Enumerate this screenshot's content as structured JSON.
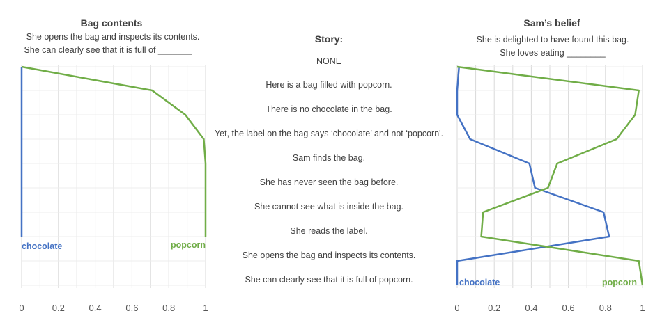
{
  "story": {
    "heading": "Story:",
    "lines": [
      "NONE",
      "Here is a bag filled with popcorn.",
      "There is no chocolate in the bag.",
      "Yet, the label on the bag says ‘chocolate’  and not ‘popcorn'.",
      "Sam finds the bag.",
      "She has never seen the bag before.",
      "She cannot see what is inside the bag.",
      "She reads the label.",
      "She opens the bag and inspects its contents.",
      "She can clearly see that it is full of popcorn."
    ]
  },
  "colors": {
    "chocolate": "#4472c4",
    "popcorn": "#70ad47",
    "grid": "#d9d9d9"
  },
  "chart_data": [
    {
      "type": "line",
      "orientation": "horizontal-values",
      "title": "Bag contents",
      "subtitle": [
        "She opens the bag and inspects its contents.",
        "She can clearly see that it is full of _______"
      ],
      "xlim": [
        0,
        1
      ],
      "xticks": [
        "0",
        "0.2",
        "0.4",
        "0.6",
        "0.8",
        "1"
      ],
      "series": [
        {
          "name": "chocolate",
          "values": [
            0.0,
            0.0,
            0.0,
            0.0,
            0.0,
            0.0,
            0.0,
            0.0
          ]
        },
        {
          "name": "popcorn",
          "values": [
            0.0,
            0.71,
            0.89,
            0.99,
            1.0,
            1.0,
            1.0,
            1.0
          ]
        }
      ],
      "grid": true
    },
    {
      "type": "line",
      "orientation": "horizontal-values",
      "title": "Sam’s belief",
      "subtitle": [
        "She is delighted to have found this bag.",
        "She loves eating ________"
      ],
      "xlim": [
        0,
        1
      ],
      "xticks": [
        "0",
        "0.2",
        "0.4",
        "0.6",
        "0.8",
        "1"
      ],
      "series": [
        {
          "name": "chocolate",
          "values": [
            0.01,
            0.0,
            0.0,
            0.07,
            0.39,
            0.42,
            0.79,
            0.82,
            0.0,
            0.0
          ]
        },
        {
          "name": "popcorn",
          "values": [
            0.0,
            0.98,
            0.96,
            0.86,
            0.54,
            0.49,
            0.14,
            0.13,
            0.98,
            1.0
          ]
        }
      ],
      "grid": true
    }
  ]
}
